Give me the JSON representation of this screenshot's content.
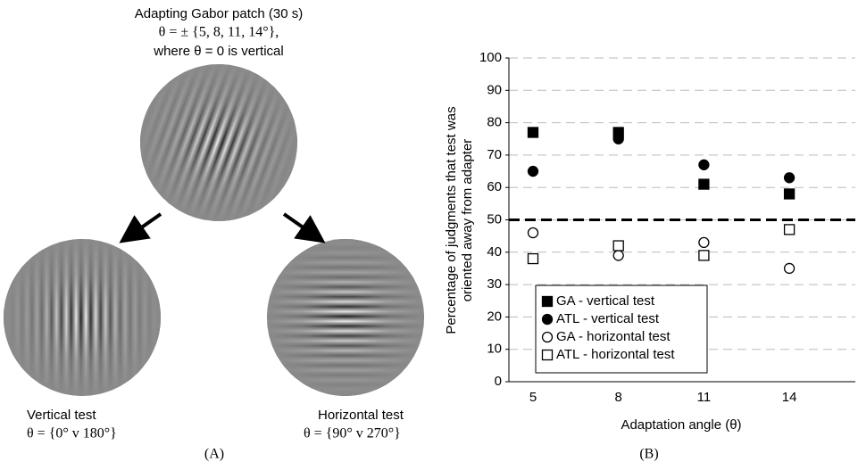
{
  "panel_a": {
    "adapter_title": "Adapting Gabor patch (30 s)",
    "adapter_angles": "θ = ± {5, 8, 11, 14°},",
    "adapter_note": "where θ = 0 is vertical",
    "vertical_label": "Vertical test",
    "vertical_angles": "θ = {0° v 180°}",
    "horizontal_label": "Horizontal test",
    "horizontal_angles": "θ = {90° v 270°}",
    "panel_label": "(A)"
  },
  "chart_data": {
    "type": "scatter",
    "panel_label": "(B)",
    "x_label": "Adaptation angle (θ)",
    "y_label": [
      "Percentage of judgments that test was",
      "oriented away from adapter"
    ],
    "categories": [
      "5",
      "8",
      "11",
      "14"
    ],
    "ylim": [
      0,
      100
    ],
    "yticks": [
      0,
      10,
      20,
      30,
      40,
      50,
      60,
      70,
      80,
      90,
      100
    ],
    "grid": true,
    "reference_line": 50,
    "legend": "lower left",
    "series": [
      {
        "name": "GA - vertical test",
        "marker": "square",
        "filled": true,
        "color": "#000000",
        "values": [
          77,
          77,
          61,
          58
        ]
      },
      {
        "name": "ATL - vertical test",
        "marker": "circle",
        "filled": true,
        "color": "#000000",
        "values": [
          65,
          75,
          67,
          63
        ]
      },
      {
        "name": "GA - horizontal test",
        "marker": "circle",
        "filled": false,
        "color": "#000000",
        "values": [
          46,
          39,
          43,
          35
        ]
      },
      {
        "name": "ATL - horizontal test",
        "marker": "square",
        "filled": false,
        "color": "#000000",
        "values": [
          38,
          42,
          39,
          47
        ]
      }
    ]
  }
}
